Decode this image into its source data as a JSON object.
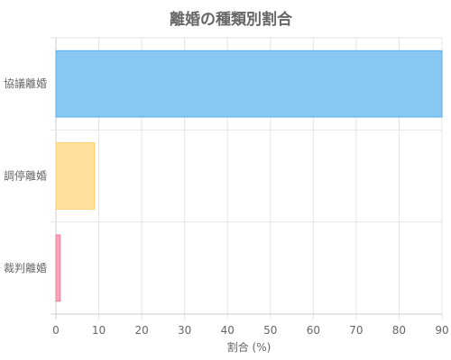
{
  "chart_data": {
    "type": "bar",
    "orientation": "horizontal",
    "title": "離婚の種類別割合",
    "xlabel": "割合 (%)",
    "ylabel": "",
    "categories": [
      "協議離婚",
      "調停離婚",
      "裁判離婚"
    ],
    "values": [
      90,
      9,
      1
    ],
    "xlim": [
      0,
      90
    ],
    "xticks": [
      0,
      10,
      20,
      30,
      40,
      50,
      60,
      70,
      80,
      90
    ],
    "grid": true,
    "legend": "none",
    "colors": [
      {
        "fill": "#88c7f2",
        "stroke": "#5aaeea"
      },
      {
        "fill": "#fde19c",
        "stroke": "#f5cf6a"
      },
      {
        "fill": "#f4a6bb",
        "stroke": "#ea7f9c"
      }
    ]
  }
}
